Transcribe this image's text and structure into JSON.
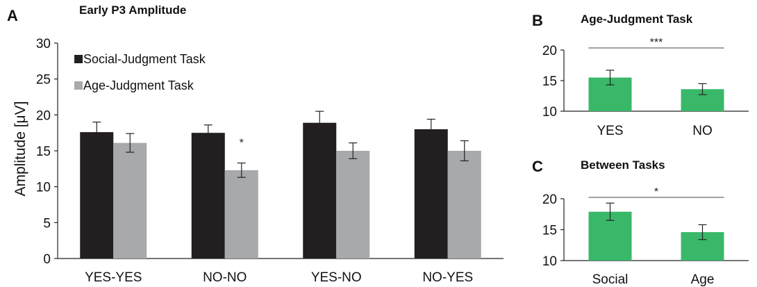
{
  "chart_data": [
    {
      "panel": "A",
      "type": "bar",
      "title": "Early P3 Amplitude",
      "xlabel": "",
      "ylabel": "Amplitude [μV]",
      "ylim": [
        0,
        30
      ],
      "yticks": [
        0,
        5,
        10,
        15,
        20,
        25,
        30
      ],
      "categories": [
        "YES-YES",
        "NO-NO",
        "YES-NO",
        "NO-YES"
      ],
      "series": [
        {
          "name": "Social-Judgment Task",
          "color": "#231f20",
          "values": [
            17.6,
            17.5,
            18.9,
            18.0
          ],
          "errors": [
            1.4,
            1.1,
            1.6,
            1.4
          ]
        },
        {
          "name": "Age-Judgment Task",
          "color": "#a7a9ac",
          "values": [
            16.1,
            12.3,
            15.0,
            15.0
          ],
          "errors": [
            1.3,
            1.0,
            1.1,
            1.4
          ]
        }
      ],
      "annotations": [
        {
          "category": "NO-NO",
          "series": 1,
          "text": "*"
        }
      ],
      "legend": "top-left",
      "grid": false
    },
    {
      "panel": "B",
      "type": "bar",
      "title": "Age-Judgment Task",
      "xlabel": "",
      "ylabel": "",
      "ylim": [
        10,
        20
      ],
      "yticks": [
        10,
        15,
        20
      ],
      "categories": [
        "YES",
        "NO"
      ],
      "series": [
        {
          "color": "#39b86a",
          "values": [
            15.5,
            13.6
          ],
          "errors": [
            1.2,
            0.9
          ]
        }
      ],
      "significance": "***",
      "grid": false
    },
    {
      "panel": "C",
      "type": "bar",
      "title": "Between Tasks",
      "xlabel": "",
      "ylabel": "",
      "ylim": [
        10,
        20
      ],
      "yticks": [
        10,
        15,
        20
      ],
      "categories": [
        "Social",
        "Age"
      ],
      "series": [
        {
          "color": "#39b86a",
          "values": [
            17.9,
            14.6
          ],
          "errors": [
            1.4,
            1.2
          ]
        }
      ],
      "significance": "*",
      "grid": false
    }
  ]
}
